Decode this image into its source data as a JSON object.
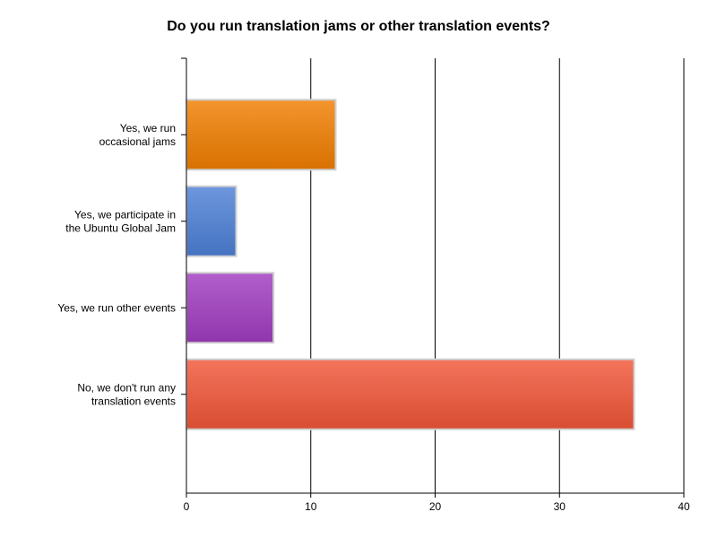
{
  "chart_data": {
    "type": "bar",
    "orientation": "horizontal",
    "title": "Do you run translation jams or other translation events?",
    "xlabel": "",
    "ylabel": "",
    "xlim": [
      0,
      40
    ],
    "x_ticks": [
      0,
      10,
      20,
      30,
      40
    ],
    "grid": "vertical",
    "legend": "none",
    "categories": [
      [
        "Yes, we run",
        "occasional jams"
      ],
      [
        "Yes, we participate in",
        "the Ubuntu Global Jam"
      ],
      [
        "Yes, we run other events"
      ],
      [
        "No, we don't run any",
        "translation events"
      ]
    ],
    "values": [
      12,
      4,
      7,
      36
    ],
    "colors": [
      "#f07e00",
      "#4d80d6",
      "#a03cc0",
      "#f05538"
    ]
  }
}
